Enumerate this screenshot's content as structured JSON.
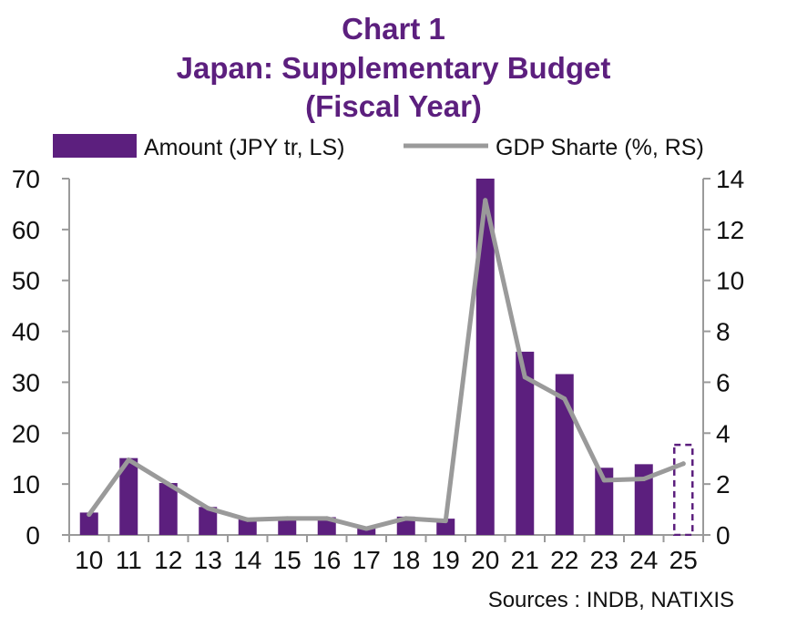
{
  "chart_data": {
    "type": "bar",
    "title": "Chart 1",
    "subtitle_lines": [
      "Japan: Supplementary Budget",
      "(Fiscal Year)"
    ],
    "categories": [
      "10",
      "11",
      "12",
      "13",
      "14",
      "15",
      "16",
      "17",
      "18",
      "19",
      "20",
      "21",
      "22",
      "23",
      "24",
      "25"
    ],
    "series": [
      {
        "name": "Amount (JPY tr, LS)",
        "type": "bar",
        "axis": "left",
        "color": "#5c1f7e",
        "values": [
          4.4,
          15.1,
          10.2,
          5.5,
          3.1,
          3.3,
          3.5,
          1.3,
          3.6,
          3.2,
          73.0,
          36.0,
          31.6,
          13.2,
          13.9,
          17.7
        ],
        "dashed_last": true
      },
      {
        "name": "GDP Sharte (%, RS)",
        "type": "line",
        "axis": "right",
        "color": "#9a9a9a",
        "values": [
          0.8,
          2.95,
          2.0,
          1.05,
          0.6,
          0.65,
          0.65,
          0.25,
          0.65,
          0.55,
          13.15,
          6.2,
          5.35,
          2.15,
          2.2,
          2.8
        ]
      }
    ],
    "ylim_left": [
      0,
      70
    ],
    "ylim_right": [
      0,
      14
    ],
    "yticks_left": [
      0,
      10,
      20,
      30,
      40,
      50,
      60,
      70
    ],
    "yticks_right": [
      0,
      2,
      4,
      6,
      8,
      10,
      12,
      14
    ],
    "source": "Sources : INDB, NATIXIS"
  }
}
